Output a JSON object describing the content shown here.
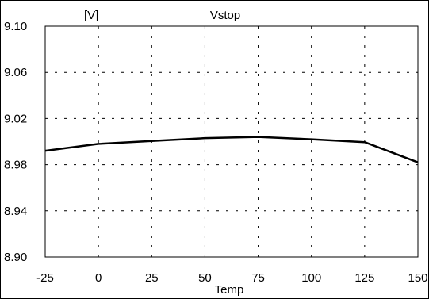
{
  "chart_data": {
    "type": "line",
    "title": "Vstop",
    "ylabel": "[V]",
    "xlabel": "Temp",
    "x": [
      -25,
      0,
      25,
      50,
      75,
      100,
      125,
      150
    ],
    "series": [
      {
        "values": [
          8.992,
          8.998,
          9.0005,
          9.003,
          9.004,
          9.002,
          8.9995,
          8.982
        ]
      }
    ],
    "xlim": [
      -25,
      150
    ],
    "ylim": [
      8.9,
      9.1
    ],
    "xticks": [
      "-25",
      "0",
      "25",
      "50",
      "75",
      "100",
      "125",
      "150"
    ],
    "yticks": [
      "9.10",
      "9.06",
      "9.02",
      "8.98",
      "8.94",
      "8.90"
    ],
    "grid": true,
    "line_color": "#000000"
  }
}
